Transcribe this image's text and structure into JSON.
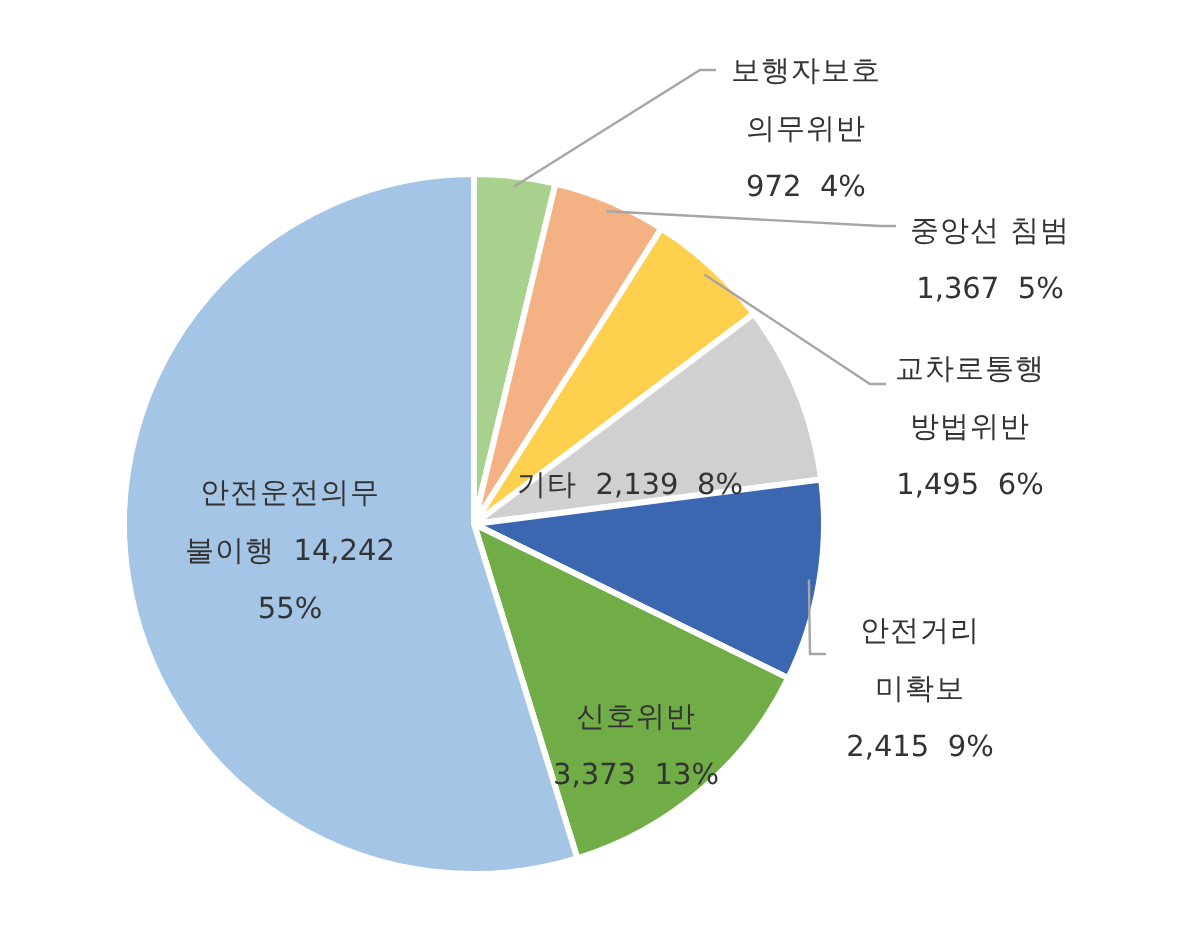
{
  "chart_data": {
    "type": "pie",
    "categories": [
      "보행자보호\n의무위반",
      "중앙선 침범",
      "교차로통행\n방법위반",
      "기타",
      "안전거리\n미확보",
      "신호위반",
      "안전운전의무\n불이행"
    ],
    "values": [
      972,
      1367,
      1495,
      2139,
      2415,
      3373,
      14242
    ],
    "colors": [
      "#a9d18e",
      "#f4b183",
      "#ffd04d",
      "#d0d0d0",
      "#3b66b0",
      "#70ad47",
      "#a4c5e6"
    ],
    "value_labels": [
      "972  4%",
      "1,367  5%",
      "1,495  6%",
      "2,139  8%",
      "2,415  9%",
      "3,373  13%",
      "14,242\n55%"
    ]
  }
}
